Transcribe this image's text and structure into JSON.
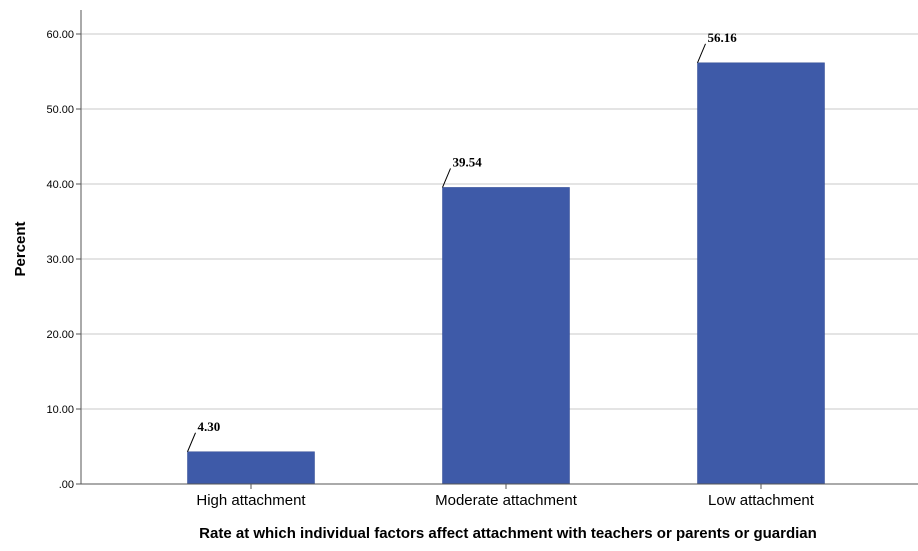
{
  "chart_data": {
    "type": "bar",
    "categories": [
      "High attachment",
      "Moderate attachment",
      "Low attachment"
    ],
    "values": [
      4.3,
      39.54,
      56.16
    ],
    "data_labels": [
      "4.30",
      "39.54",
      "56.16"
    ],
    "title": "",
    "xlabel": "Rate at which individual factors affect attachment with teachers or parents or guardian",
    "ylabel": "Percent",
    "ylim": [
      0,
      60
    ],
    "yticks": [
      ".00",
      "10.00",
      "20.00",
      "30.00",
      "40.00",
      "50.00",
      "60.00"
    ],
    "grid": true,
    "legend": "none",
    "bar_color": "#3e5aa8",
    "grid_color": "#c8c8c8",
    "axis_color": "#555555"
  }
}
